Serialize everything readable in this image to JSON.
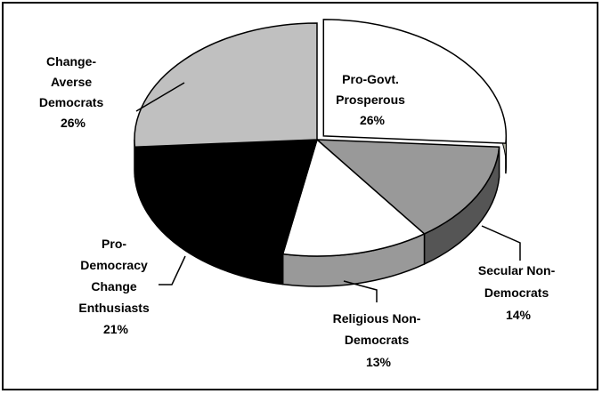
{
  "chart_data": {
    "type": "pie",
    "style": "3d",
    "slices": [
      {
        "label_lines": [
          "Pro-Govt.",
          "Prosperous",
          "26%"
        ],
        "value": 26,
        "color": "#ffffff",
        "side_color": "#ffffff",
        "exploded": true
      },
      {
        "label_lines": [
          "Secular Non-",
          "Democrats",
          "14%"
        ],
        "value": 14,
        "color": "#999999",
        "side_color": "#555555",
        "exploded": false
      },
      {
        "label_lines": [
          "Religious Non-",
          "Democrats",
          "13%"
        ],
        "value": 13,
        "color": "#ffffff",
        "side_color": "#999999",
        "exploded": false
      },
      {
        "label_lines": [
          "Pro-",
          "Democracy",
          "Change",
          "Enthusiasts",
          "21%"
        ],
        "value": 21,
        "color": "#000000",
        "side_color": "#000000",
        "exploded": false
      },
      {
        "label_lines": [
          "Change-",
          "Averse",
          "Democrats",
          "26%"
        ],
        "value": 26,
        "color": "#c0c0c0",
        "side_color": "#000000",
        "exploded": false
      }
    ],
    "legend": "none"
  }
}
